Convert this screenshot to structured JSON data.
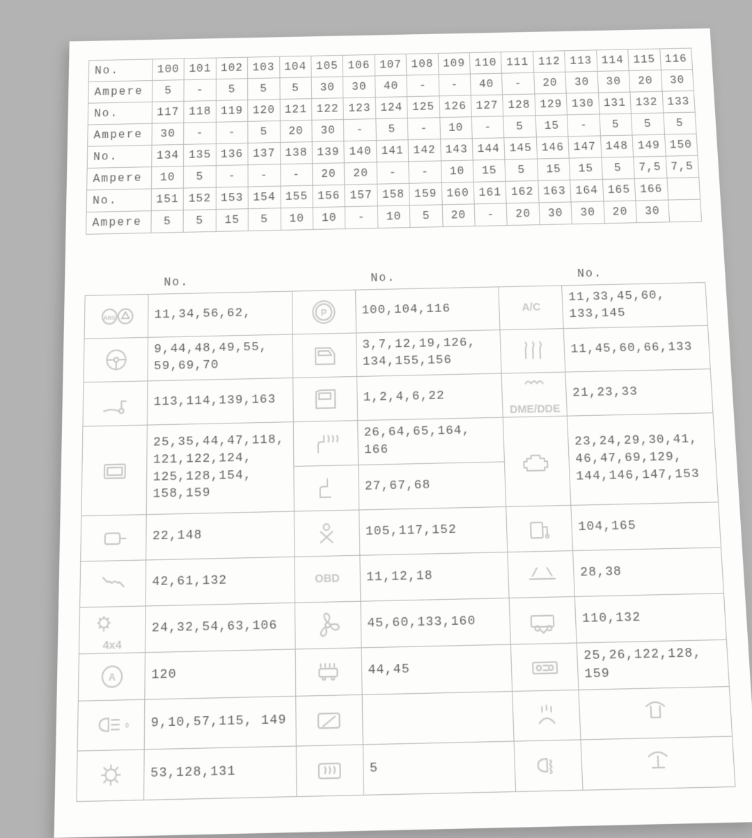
{
  "background_color": "#b3b3b3",
  "card_color": "#fdfdfb",
  "line_color": "#b9b9b9",
  "text_color": "#666666",
  "icon_color": "#c8c8c8",
  "font": "Courier New",
  "fuse_table": {
    "col_count": 17,
    "label_no": "No.",
    "label_amp": "Ampere",
    "blocks": [
      {
        "no": [
          "100",
          "101",
          "102",
          "103",
          "104",
          "105",
          "106",
          "107",
          "108",
          "109",
          "110",
          "111",
          "112",
          "113",
          "114",
          "115",
          "116"
        ],
        "amp": [
          "5",
          "-",
          "5",
          "5",
          "5",
          "30",
          "30",
          "40",
          "-",
          "-",
          "40",
          "-",
          "20",
          "30",
          "30",
          "20",
          "30"
        ]
      },
      {
        "no": [
          "117",
          "118",
          "119",
          "120",
          "121",
          "122",
          "123",
          "124",
          "125",
          "126",
          "127",
          "128",
          "129",
          "130",
          "131",
          "132",
          "133"
        ],
        "amp": [
          "30",
          "-",
          "-",
          "5",
          "20",
          "30",
          "-",
          "5",
          "-",
          "10",
          "-",
          "5",
          "15",
          "-",
          "5",
          "5",
          "5"
        ]
      },
      {
        "no": [
          "134",
          "135",
          "136",
          "137",
          "138",
          "139",
          "140",
          "141",
          "142",
          "143",
          "144",
          "145",
          "146",
          "147",
          "148",
          "149",
          "150"
        ],
        "amp": [
          "10",
          "5",
          "-",
          "-",
          "-",
          "20",
          "20",
          "-",
          "-",
          "10",
          "15",
          "5",
          "15",
          "15",
          "5",
          "7,5",
          "7,5"
        ]
      },
      {
        "no": [
          "151",
          "152",
          "153",
          "154",
          "155",
          "156",
          "157",
          "158",
          "159",
          "160",
          "161",
          "162",
          "163",
          "164",
          "165",
          "166",
          ""
        ],
        "amp": [
          "5",
          "5",
          "15",
          "5",
          "10",
          "10",
          "-",
          "10",
          "5",
          "20",
          "-",
          "20",
          "30",
          "30",
          "20",
          "30",
          ""
        ]
      }
    ]
  },
  "map_table": {
    "header": "No.",
    "rows": [
      [
        {
          "icon": "abs",
          "nums": "11,34,56,62,"
        },
        {
          "icon": "parking-brake",
          "nums": "100,104,116"
        },
        {
          "icon": "ac",
          "text": "A/C",
          "nums": "11,33,45,60, 133,145"
        }
      ],
      [
        {
          "icon": "steering",
          "nums": "9,44,48,49,55, 59,69,70"
        },
        {
          "icon": "door-front",
          "nums": "3,7,12,19,126, 134,155,156"
        },
        {
          "icon": "defrost",
          "nums": "11,45,60,66,133"
        }
      ],
      [
        {
          "icon": "tow",
          "nums": "113,114,139,163"
        },
        {
          "icon": "door-rear",
          "nums": "1,2,4,6,22"
        },
        {
          "icon": "dme",
          "text": "DME/DDE",
          "nums": "21,23,33"
        }
      ],
      [
        {
          "icon": "display",
          "rowspan": 2,
          "nums": "25,35,44,47,118, 121,122,124, 125,128,154, 158,159"
        },
        {
          "icon": "seat-heat",
          "nums": "26,64,65,164, 166"
        },
        {
          "icon": "engine",
          "rowspan": 2,
          "nums": "23,24,29,30,41, 46,47,69,129, 144,146,147,153"
        }
      ],
      [
        null,
        {
          "icon": "seat",
          "nums": "27,67,68"
        },
        null
      ],
      [
        {
          "icon": "mirror",
          "nums": "22,148"
        },
        {
          "icon": "seatbelt",
          "nums": "105,117,152"
        },
        {
          "icon": "fuel",
          "nums": "104,165"
        }
      ],
      [
        {
          "icon": "suspension",
          "nums": "42,61,132"
        },
        {
          "icon": "obd",
          "text": "OBD",
          "nums": "11,12,18"
        },
        {
          "icon": "level",
          "nums": "28,38"
        }
      ],
      [
        {
          "icon": "fourx",
          "text": "4x4",
          "nums": "24,32,54,63,106"
        },
        {
          "icon": "fan",
          "nums": "45,60,133,160"
        },
        {
          "icon": "van",
          "nums": "110,132"
        }
      ],
      [
        {
          "icon": "auto-start",
          "nums": "120"
        },
        {
          "icon": "car-wash",
          "nums": "44,45"
        },
        {
          "icon": "radio",
          "nums": "25,26,122,128, 159"
        }
      ],
      [
        {
          "icon": "lights",
          "nums": "9,10,57,115, 149"
        },
        {
          "icon": "wiper-rear",
          "nums": ""
        },
        {
          "icon": "washer",
          "nums": "",
          "center_icon": "lift1"
        }
      ],
      [
        {
          "icon": "bulb",
          "nums": "53,128,131"
        },
        {
          "icon": "defrost-rear",
          "nums": "5"
        },
        {
          "icon": "fog",
          "nums": "",
          "center_icon": "lift2"
        }
      ]
    ]
  }
}
